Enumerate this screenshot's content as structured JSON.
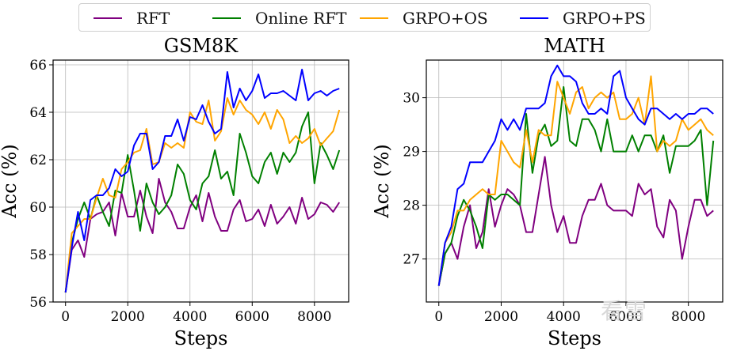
{
  "legend": {
    "position": "top-center",
    "entries": [
      {
        "name": "RFT",
        "color": "#800080"
      },
      {
        "name": "Online RFT",
        "color": "#008000"
      },
      {
        "name": "GRPO+OS",
        "color": "#FFA500"
      },
      {
        "name": "GRPO+PS",
        "color": "#0000FF"
      }
    ]
  },
  "watermark": "看雪",
  "chart_data": [
    {
      "type": "line",
      "title": "GSM8K",
      "xlabel": "Steps",
      "ylabel": "Acc (%)",
      "xlim": [
        -400,
        9100
      ],
      "ylim": [
        56,
        66.2
      ],
      "xticks": [
        0,
        2000,
        4000,
        6000,
        8000
      ],
      "yticks": [
        56,
        58,
        60,
        62,
        64,
        66
      ],
      "grid": true,
      "x": [
        0,
        200,
        400,
        600,
        800,
        1000,
        1200,
        1400,
        1600,
        1800,
        2000,
        2200,
        2400,
        2600,
        2800,
        3000,
        3200,
        3400,
        3600,
        3800,
        4000,
        4200,
        4400,
        4600,
        4800,
        5000,
        5200,
        5400,
        5600,
        5800,
        6000,
        6200,
        6400,
        6600,
        6800,
        7000,
        7200,
        7400,
        7600,
        7800,
        8000,
        8200,
        8400,
        8600,
        8800
      ],
      "series": [
        {
          "name": "RFT",
          "color": "#800080",
          "values": [
            56.4,
            58.2,
            58.6,
            57.9,
            59.5,
            59.7,
            59.8,
            60.2,
            58.8,
            60.6,
            59.6,
            59.6,
            60.7,
            59.6,
            58.9,
            61.2,
            60.2,
            59.8,
            59.1,
            59.1,
            60.0,
            60.5,
            59.4,
            60.6,
            59.6,
            59.0,
            59.0,
            59.9,
            60.3,
            59.4,
            59.5,
            59.9,
            59.2,
            60.1,
            59.3,
            59.6,
            60.0,
            59.3,
            60.4,
            59.5,
            59.7,
            60.2,
            60.1,
            59.8,
            60.2
          ]
        },
        {
          "name": "Online RFT",
          "color": "#008000",
          "values": [
            56.4,
            58.5,
            59.5,
            60.2,
            59.5,
            60.5,
            59.8,
            59.2,
            60.7,
            60.6,
            62.2,
            60.7,
            59.0,
            61.0,
            60.2,
            59.7,
            60.0,
            60.5,
            61.8,
            61.4,
            60.3,
            59.9,
            61.0,
            61.3,
            62.4,
            61.2,
            61.5,
            60.5,
            63.1,
            62.3,
            61.3,
            61.0,
            61.9,
            62.3,
            61.4,
            62.3,
            61.9,
            62.3,
            63.4,
            64.0,
            61.0,
            62.7,
            62.2,
            61.6,
            62.4
          ]
        },
        {
          "name": "GRPO+OS",
          "color": "#FFA500",
          "values": [
            56.4,
            58.9,
            59.2,
            59.5,
            59.5,
            60.4,
            61.2,
            60.5,
            60.4,
            61.6,
            61.9,
            62.3,
            62.4,
            63.3,
            61.8,
            61.9,
            62.7,
            62.5,
            62.7,
            62.5,
            64.0,
            63.6,
            63.5,
            64.5,
            62.8,
            63.2,
            64.6,
            63.9,
            64.5,
            64.1,
            63.9,
            63.5,
            64.0,
            63.3,
            64.1,
            63.7,
            62.7,
            63.0,
            62.7,
            62.9,
            63.3,
            62.6,
            62.9,
            63.2,
            64.1
          ]
        },
        {
          "name": "GRPO+PS",
          "color": "#0000FF",
          "values": [
            56.4,
            58.3,
            59.8,
            58.6,
            60.3,
            60.5,
            60.5,
            60.8,
            61.6,
            61.3,
            61.5,
            62.6,
            63.1,
            63.1,
            61.6,
            61.9,
            63.0,
            63.0,
            63.7,
            62.8,
            63.8,
            63.7,
            64.3,
            63.6,
            63.1,
            63.3,
            65.7,
            64.2,
            65.0,
            64.5,
            64.9,
            65.6,
            64.6,
            64.8,
            64.8,
            64.9,
            64.7,
            64.5,
            65.8,
            64.5,
            64.8,
            64.9,
            64.7,
            64.9,
            65.0
          ]
        }
      ]
    },
    {
      "type": "line",
      "title": "MATH",
      "xlabel": "Steps",
      "ylabel": "Acc (%)",
      "xlim": [
        -400,
        9100
      ],
      "ylim": [
        26.2,
        30.7
      ],
      "xticks": [
        0,
        2000,
        4000,
        6000,
        8000
      ],
      "yticks": [
        27,
        28,
        29,
        30
      ],
      "grid": true,
      "x": [
        0,
        200,
        400,
        600,
        800,
        1000,
        1200,
        1400,
        1600,
        1800,
        2000,
        2200,
        2400,
        2600,
        2800,
        3000,
        3200,
        3400,
        3600,
        3800,
        4000,
        4200,
        4400,
        4600,
        4800,
        5000,
        5200,
        5400,
        5600,
        5800,
        6000,
        6200,
        6400,
        6600,
        6800,
        7000,
        7200,
        7400,
        7600,
        7800,
        8000,
        8200,
        8400,
        8600,
        8800
      ],
      "series": [
        {
          "name": "RFT",
          "color": "#800080",
          "values": [
            26.5,
            27.1,
            27.3,
            27.0,
            27.6,
            28.0,
            27.2,
            27.5,
            28.3,
            27.6,
            28.0,
            28.3,
            28.2,
            28.0,
            27.5,
            27.5,
            28.2,
            28.9,
            28.0,
            27.5,
            27.8,
            27.3,
            27.3,
            27.8,
            28.1,
            28.1,
            28.4,
            28.0,
            27.9,
            27.9,
            27.9,
            27.8,
            28.4,
            28.2,
            28.3,
            27.6,
            27.4,
            28.1,
            27.9,
            27.0,
            27.6,
            28.1,
            28.1,
            27.8,
            27.9
          ]
        },
        {
          "name": "Online RFT",
          "color": "#008000",
          "values": [
            26.5,
            27.1,
            27.3,
            27.8,
            28.1,
            27.9,
            27.6,
            27.2,
            28.2,
            28.1,
            28.2,
            28.2,
            28.1,
            28.0,
            29.7,
            28.6,
            29.3,
            29.5,
            29.1,
            29.2,
            30.2,
            29.2,
            29.1,
            29.6,
            29.6,
            29.4,
            29.0,
            29.6,
            29.0,
            29.0,
            29.0,
            29.3,
            29.0,
            29.3,
            29.3,
            29.0,
            29.3,
            28.6,
            29.1,
            29.1,
            29.1,
            29.2,
            29.4,
            28.0,
            29.2
          ]
        },
        {
          "name": "GRPO+OS",
          "color": "#FFA500",
          "values": [
            26.5,
            27.3,
            27.5,
            27.9,
            27.9,
            28.1,
            28.2,
            28.3,
            28.2,
            28.2,
            29.2,
            29.0,
            28.8,
            28.7,
            29.4,
            28.8,
            29.4,
            29.3,
            29.3,
            30.3,
            30.0,
            29.7,
            30.1,
            30.2,
            29.8,
            30.0,
            30.1,
            30.0,
            30.1,
            29.6,
            29.6,
            29.7,
            30.0,
            29.5,
            30.4,
            29.0,
            29.2,
            29.1,
            29.2,
            29.6,
            29.4,
            29.5,
            29.6,
            29.4,
            29.3
          ]
        },
        {
          "name": "GRPO+PS",
          "color": "#0000FF",
          "values": [
            26.5,
            27.3,
            27.6,
            28.3,
            28.4,
            28.8,
            28.8,
            28.8,
            29.0,
            29.2,
            29.6,
            29.4,
            29.6,
            29.4,
            29.8,
            29.8,
            29.8,
            29.9,
            30.4,
            30.6,
            30.4,
            30.4,
            30.3,
            29.9,
            29.7,
            29.7,
            29.8,
            29.7,
            30.4,
            30.5,
            30.0,
            29.8,
            29.6,
            29.5,
            29.8,
            29.8,
            29.7,
            29.6,
            29.7,
            29.6,
            29.7,
            29.7,
            29.8,
            29.8,
            29.7
          ]
        }
      ]
    }
  ]
}
